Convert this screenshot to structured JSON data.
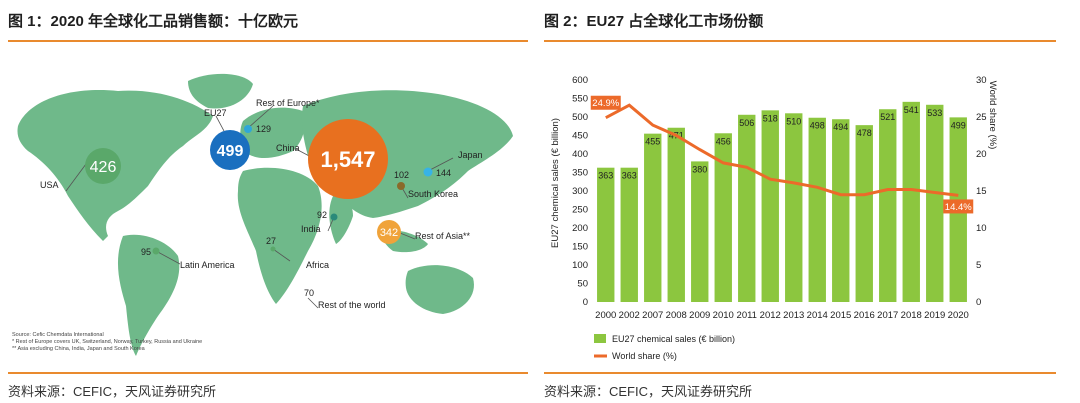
{
  "left_panel": {
    "title": "图 1：2020 年全球化工品销售额：十亿欧元",
    "source": "资料来源：CEFIC，天风证券研究所",
    "map_source_lines": [
      "Source: Cefic Chemdata International",
      "* Rest of Europe covers UK, Switzerland, Norway, Turkey, Russia and Ukraine",
      "** Asia excluding China, India, Japan and South Korea"
    ],
    "regions": [
      {
        "name": "USA",
        "value": "426",
        "color": "#5aa86a"
      },
      {
        "name": "EU27",
        "value": "499",
        "color": "#1a6fbf"
      },
      {
        "name": "Rest of Europe*",
        "value": "129",
        "color": "#2fa7d8"
      },
      {
        "name": "China",
        "value": "1,547",
        "color": "#e8701f"
      },
      {
        "name": "Japan",
        "value": "144",
        "color": "#37b3e6"
      },
      {
        "name": "South Korea",
        "value": "102",
        "color": "#8a6a2a"
      },
      {
        "name": "India",
        "value": "92",
        "color": "#2a8a7a"
      },
      {
        "name": "Rest of Asia**",
        "value": "342",
        "color": "#f0a33a"
      },
      {
        "name": "Latin America",
        "value": "95",
        "color": "#5aa86a"
      },
      {
        "name": "Africa",
        "value": "27",
        "color": "#5aa86a"
      },
      {
        "name": "Rest of the world",
        "value": "70",
        "color": "#5aa86a"
      }
    ]
  },
  "right_panel": {
    "title": "图 2：EU27 占全球化工市场份额",
    "source": "资料来源：CEFIC，天风证券研究所"
  },
  "chart_data": {
    "type": "bar",
    "title": "图 2：EU27 占全球化工市场份额",
    "categories": [
      "2000",
      "2002",
      "2007",
      "2008",
      "2009",
      "2010",
      "2011",
      "2012",
      "2013",
      "2014",
      "2015",
      "2016",
      "2017",
      "2018",
      "2019",
      "2020"
    ],
    "series": [
      {
        "name": "EU27 chemical sales (€ billion)",
        "type": "bar",
        "axis": "left",
        "color": "#8cc63f",
        "values": [
          363,
          363,
          455,
          471,
          380,
          456,
          506,
          518,
          510,
          498,
          494,
          478,
          521,
          541,
          533,
          499
        ]
      },
      {
        "name": "World share (%)",
        "type": "line",
        "axis": "right",
        "color": "#ec6a2a",
        "values": [
          24.9,
          26.6,
          23.9,
          22.5,
          20.6,
          18.8,
          18.2,
          16.6,
          16.1,
          15.5,
          14.5,
          14.5,
          15.2,
          15.2,
          14.8,
          14.4
        ]
      }
    ],
    "ylabel": "EU27 chemical sales (€ billion)",
    "ylim": [
      0,
      600
    ],
    "yticks": [
      0,
      50,
      100,
      150,
      200,
      250,
      300,
      350,
      400,
      450,
      500,
      550,
      600
    ],
    "ylabel_right": "World share (%)",
    "ylim_right": [
      0,
      30
    ],
    "yticks_right": [
      0,
      5,
      10,
      15,
      20,
      25,
      30
    ],
    "annotations": [
      {
        "text": "24.9%",
        "series": "World share (%)",
        "index": 0
      },
      {
        "text": "14.4%",
        "series": "World share (%)",
        "index": 15
      }
    ],
    "legend": [
      "EU27 chemical sales (€ billion)",
      "World share (%)"
    ],
    "legend_position": "bottom-left"
  }
}
